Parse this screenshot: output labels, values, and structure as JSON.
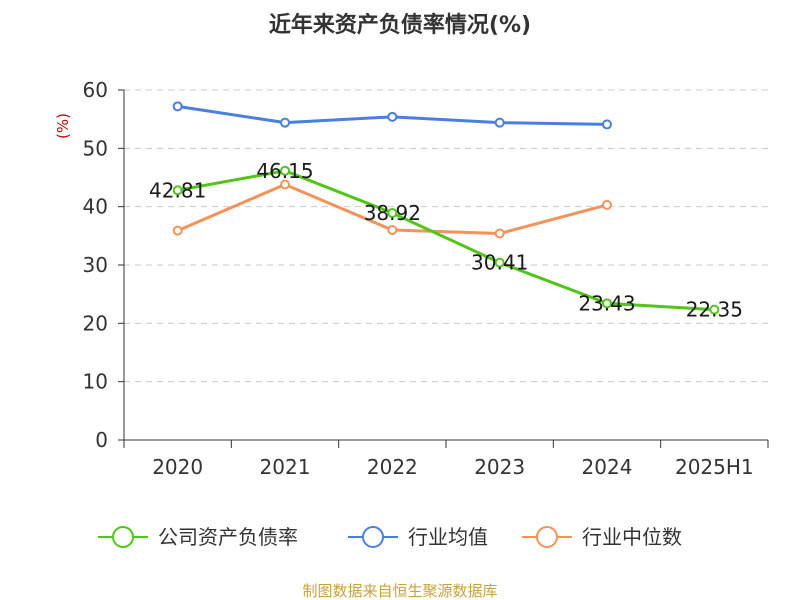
{
  "chart_data": {
    "type": "line",
    "title": "近年来资产负债率情况(%)",
    "ylabel": "(%)",
    "xlabel": "",
    "categories": [
      "2020",
      "2021",
      "2022",
      "2023",
      "2024",
      "2025H1"
    ],
    "ylim": [
      0,
      60
    ],
    "yticks": [
      "0",
      "10",
      "20",
      "30",
      "40",
      "50",
      "60"
    ],
    "grid": true,
    "legend_position": "bottom",
    "series": [
      {
        "name": "公司资产负债率",
        "color": "#52c41a",
        "values": [
          42.81,
          46.15,
          38.92,
          30.41,
          23.43,
          22.35
        ],
        "labels": [
          "42.81",
          "46.15",
          "38.92",
          "30.41",
          "23.43",
          "22.35"
        ]
      },
      {
        "name": "行业均值",
        "color": "#4a7fdc",
        "values": [
          57.2,
          54.4,
          55.4,
          54.4,
          54.1,
          null
        ]
      },
      {
        "name": "行业中位数",
        "color": "#f4925a",
        "values": [
          35.9,
          43.8,
          36.0,
          35.4,
          40.3,
          null
        ]
      }
    ]
  },
  "source": "制图数据来自恒生聚源数据库"
}
